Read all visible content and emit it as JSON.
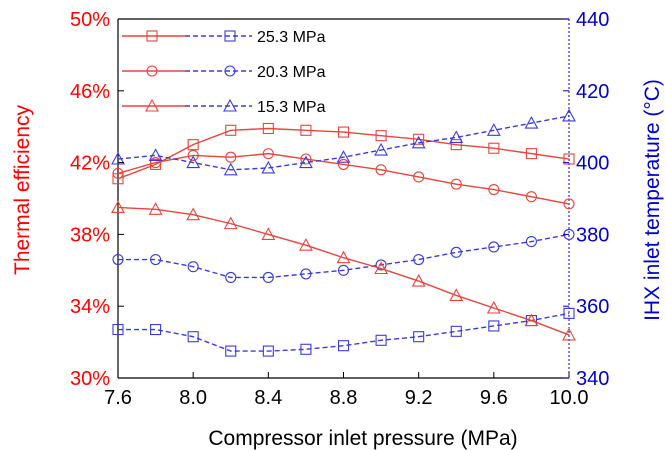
{
  "chart_data": {
    "type": "line",
    "xlabel": "Compressor inlet pressure (MPa)",
    "ylabel_left": "Thermal efficiency",
    "ylabel_right": "IHX inlet temperature (°C)",
    "x": [
      7.6,
      7.8,
      8.0,
      8.2,
      8.4,
      8.6,
      8.8,
      9.0,
      9.2,
      9.4,
      9.6,
      9.8,
      10.0
    ],
    "xlim": [
      7.6,
      10.0
    ],
    "x_ticks": [
      "7.6",
      "8.0",
      "8.4",
      "8.8",
      "9.2",
      "9.6",
      "10.0"
    ],
    "ylim_left": [
      30,
      50
    ],
    "y_ticks_left": [
      "30%",
      "34%",
      "38%",
      "42%",
      "46%",
      "50%"
    ],
    "ylim_right": [
      340,
      440
    ],
    "y_ticks_right": [
      "340",
      "360",
      "380",
      "400",
      "420",
      "440"
    ],
    "grid": false,
    "legend_position": "top-left",
    "legend": [
      "25.3 MPa",
      "20.3 MPa",
      "15.3 MPa"
    ],
    "colors": {
      "left_axis": "#ff0000",
      "right_axis": "#0000cc",
      "efficiency": "#e8453c",
      "temperature": "#3b3bdb"
    },
    "series": [
      {
        "name": "25.3 MPa",
        "marker": "square",
        "axis": "left",
        "color": "#e8453c",
        "style": "solid",
        "values": [
          41.1,
          41.9,
          43.0,
          43.8,
          43.9,
          43.8,
          43.7,
          43.5,
          43.3,
          43.0,
          42.8,
          42.5,
          42.2
        ]
      },
      {
        "name": "25.3 MPa",
        "marker": "square",
        "axis": "right",
        "color": "#3b3bdb",
        "style": "dashed",
        "values": [
          353.5,
          353.5,
          351.5,
          347.5,
          347.5,
          348.0,
          349.0,
          350.5,
          351.5,
          353.0,
          354.5,
          356.0,
          358.0
        ]
      },
      {
        "name": "20.3 MPa",
        "marker": "circle",
        "axis": "left",
        "color": "#e8453c",
        "style": "solid",
        "values": [
          41.4,
          42.0,
          42.4,
          42.3,
          42.5,
          42.2,
          41.9,
          41.6,
          41.2,
          40.8,
          40.5,
          40.1,
          39.7
        ]
      },
      {
        "name": "20.3 MPa",
        "marker": "circle",
        "axis": "right",
        "color": "#3b3bdb",
        "style": "dashed",
        "values": [
          373.0,
          373.0,
          371.0,
          368.0,
          368.0,
          369.0,
          370.0,
          371.5,
          373.0,
          375.0,
          376.5,
          378.0,
          380.0
        ]
      },
      {
        "name": "15.3 MPa",
        "marker": "triangle",
        "axis": "left",
        "color": "#e8453c",
        "style": "solid",
        "values": [
          39.5,
          39.4,
          39.1,
          38.6,
          38.0,
          37.4,
          36.7,
          36.1,
          35.4,
          34.6,
          33.9,
          33.2,
          32.4
        ]
      },
      {
        "name": "15.3 MPa",
        "marker": "triangle",
        "axis": "right",
        "color": "#3b3bdb",
        "style": "dashed",
        "values": [
          401.0,
          402.0,
          400.0,
          398.0,
          398.5,
          400.0,
          401.5,
          403.5,
          405.5,
          407.0,
          409.0,
          411.0,
          413.0
        ]
      }
    ]
  }
}
